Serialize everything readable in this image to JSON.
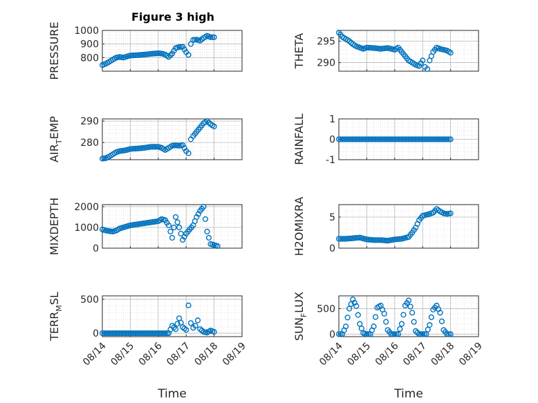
{
  "figure": {
    "title": "Figure 3 high",
    "x_label": "Time",
    "x_tick_labels": [
      "08/14",
      "08/15",
      "08/16",
      "08/17",
      "08/18",
      "08/19"
    ],
    "marker_color": "#0072BD",
    "grid": "on (major and minor, dotted)"
  },
  "panels": [
    {
      "ylabel_main": "PRESSURE",
      "ylabel_sub": "",
      "ylabel_tail": "",
      "y_tick_labels": [
        "800",
        "900",
        "1000"
      ]
    },
    {
      "ylabel_main": "THETA",
      "ylabel_sub": "",
      "ylabel_tail": "",
      "y_tick_labels": [
        "290",
        "295"
      ]
    },
    {
      "ylabel_main": "AIR",
      "ylabel_sub": "T",
      "ylabel_tail": "EMP",
      "y_tick_labels": [
        "280",
        "290"
      ]
    },
    {
      "ylabel_main": "RAINFALL",
      "ylabel_sub": "",
      "ylabel_tail": "",
      "y_tick_labels": [
        "-1",
        "0",
        "1"
      ]
    },
    {
      "ylabel_main": "MIXDEPTH",
      "ylabel_sub": "",
      "ylabel_tail": "",
      "y_tick_labels": [
        "0",
        "1000",
        "2000"
      ]
    },
    {
      "ylabel_main": "H2OMIXRA",
      "ylabel_sub": "",
      "ylabel_tail": "",
      "y_tick_labels": [
        "0",
        "5"
      ]
    },
    {
      "ylabel_main": "TERR",
      "ylabel_sub": "M",
      "ylabel_tail": "SL",
      "y_tick_labels": [
        "0",
        "500"
      ]
    },
    {
      "ylabel_main": "SUN",
      "ylabel_sub": "F",
      "ylabel_tail": "LUX",
      "y_tick_labels": [
        "0",
        "500"
      ]
    }
  ],
  "chart_data": [
    {
      "type": "scatter",
      "title": "Figure 3 high",
      "ylabel": "PRESSURE",
      "xlim": [
        "08/14",
        "08/19"
      ],
      "ylim": [
        700,
        1000
      ],
      "x": [
        "08/14 00:00",
        "08/14 03:00",
        "08/14 06:00",
        "08/14 09:00",
        "08/14 12:00",
        "08/14 15:00",
        "08/14 18:00",
        "08/14 21:00",
        "08/15 00:00",
        "08/15 06:00",
        "08/15 12:00",
        "08/15 18:00",
        "08/16 00:00",
        "08/16 03:00",
        "08/16 06:00",
        "08/16 09:00",
        "08/16 12:00",
        "08/16 15:00",
        "08/16 18:00",
        "08/16 21:00",
        "08/17 00:00",
        "08/17 02:00",
        "08/17 04:00",
        "08/17 06:00",
        "08/17 09:00",
        "08/17 12:00",
        "08/17 15:00",
        "08/17 18:00",
        "08/17 21:00",
        "08/18 00:00"
      ],
      "y": [
        745,
        755,
        770,
        785,
        800,
        805,
        800,
        808,
        815,
        818,
        822,
        828,
        832,
        830,
        822,
        805,
        830,
        870,
        878,
        880,
        840,
        820,
        900,
        930,
        932,
        925,
        945,
        960,
        950,
        950
      ]
    },
    {
      "type": "scatter",
      "ylabel": "THETA",
      "xlim": [
        "08/14",
        "08/19"
      ],
      "ylim": [
        288,
        297.5
      ],
      "x": [
        "08/14 00:00",
        "08/14 03:00",
        "08/14 06:00",
        "08/14 09:00",
        "08/14 12:00",
        "08/14 15:00",
        "08/14 18:00",
        "08/14 21:00",
        "08/15 00:00",
        "08/15 06:00",
        "08/15 12:00",
        "08/15 18:00",
        "08/16 00:00",
        "08/16 03:00",
        "08/16 06:00",
        "08/16 09:00",
        "08/16 12:00",
        "08/16 15:00",
        "08/16 18:00",
        "08/16 21:00",
        "08/17 00:00",
        "08/17 02:00",
        "08/17 04:00",
        "08/17 06:00",
        "08/17 09:00",
        "08/17 12:00",
        "08/17 15:00",
        "08/17 18:00",
        "08/17 21:00",
        "08/18 00:00"
      ],
      "y": [
        297,
        296,
        295.5,
        295,
        294.3,
        293.8,
        293.5,
        293.2,
        293.5,
        293.4,
        293.2,
        293.4,
        293,
        293.5,
        292.5,
        291.5,
        290.5,
        290,
        289.5,
        289.2,
        290.5,
        289,
        288.5,
        290.5,
        292.5,
        293.5,
        293.2,
        293,
        292.8,
        292.3
      ]
    },
    {
      "type": "scatter",
      "ylabel": "AIR_TEMP",
      "xlim": [
        "08/14",
        "08/19"
      ],
      "ylim": [
        272,
        291
      ],
      "x": [
        "08/14 00:00",
        "08/14 03:00",
        "08/14 06:00",
        "08/14 09:00",
        "08/14 12:00",
        "08/14 15:00",
        "08/14 18:00",
        "08/14 21:00",
        "08/15 00:00",
        "08/15 06:00",
        "08/15 12:00",
        "08/15 18:00",
        "08/16 00:00",
        "08/16 03:00",
        "08/16 06:00",
        "08/16 09:00",
        "08/16 12:00",
        "08/16 15:00",
        "08/16 18:00",
        "08/16 21:00",
        "08/17 00:00",
        "08/17 02:00",
        "08/17 04:00",
        "08/17 06:00",
        "08/17 09:00",
        "08/17 12:00",
        "08/17 15:00",
        "08/17 18:00",
        "08/17 21:00",
        "08/18 00:00"
      ],
      "y": [
        272.5,
        272.7,
        273.5,
        274.5,
        275.5,
        276,
        276.2,
        276.5,
        277,
        277.2,
        277.5,
        278,
        278,
        277.5,
        276.5,
        277.5,
        278.5,
        278.7,
        278.5,
        278.8,
        276,
        275,
        281.5,
        283,
        285,
        287,
        289,
        290,
        288.5,
        287.5
      ]
    },
    {
      "type": "scatter",
      "ylabel": "RAINFALL",
      "xlim": [
        "08/14",
        "08/19"
      ],
      "ylim": [
        -1,
        1
      ],
      "x": [
        "08/14 00:00",
        "08/14 12:00",
        "08/15 00:00",
        "08/15 12:00",
        "08/16 00:00",
        "08/16 12:00",
        "08/17 00:00",
        "08/17 12:00",
        "08/18 00:00"
      ],
      "y": [
        0,
        0,
        0,
        0,
        0,
        0,
        0,
        0,
        0
      ]
    },
    {
      "type": "scatter",
      "ylabel": "MIXDEPTH",
      "xlim": [
        "08/14",
        "08/19"
      ],
      "ylim": [
        0,
        2100
      ],
      "x": [
        "08/14 00:00",
        "08/14 03:00",
        "08/14 06:00",
        "08/14 09:00",
        "08/14 12:00",
        "08/14 15:00",
        "08/14 18:00",
        "08/14 21:00",
        "08/15 00:00",
        "08/15 06:00",
        "08/15 12:00",
        "08/15 18:00",
        "08/16 00:00",
        "08/16 03:00",
        "08/16 06:00",
        "08/16 09:00",
        "08/16 12:00",
        "08/16 15:00",
        "08/16 18:00",
        "08/16 21:00",
        "08/17 00:00",
        "08/17 03:00",
        "08/17 06:00",
        "08/17 09:00",
        "08/17 12:00",
        "08/17 15:00",
        "08/17 18:00",
        "08/17 21:00",
        "08/18 00:00",
        "08/18 03:00"
      ],
      "y": [
        900,
        850,
        820,
        800,
        850,
        950,
        1000,
        1050,
        1100,
        1150,
        1200,
        1250,
        1300,
        1400,
        1350,
        1100,
        500,
        1500,
        1000,
        400,
        700,
        900,
        1100,
        1500,
        1800,
        2000,
        800,
        200,
        150,
        100
      ]
    },
    {
      "type": "scatter",
      "ylabel": "H2OMIXRA",
      "xlim": [
        "08/14",
        "08/19"
      ],
      "ylim": [
        0,
        7
      ],
      "x": [
        "08/14 00:00",
        "08/14 06:00",
        "08/14 12:00",
        "08/14 18:00",
        "08/15 00:00",
        "08/15 06:00",
        "08/15 12:00",
        "08/15 18:00",
        "08/16 00:00",
        "08/16 06:00",
        "08/16 12:00",
        "08/16 15:00",
        "08/16 18:00",
        "08/16 21:00",
        "08/17 00:00",
        "08/17 06:00",
        "08/17 09:00",
        "08/17 12:00",
        "08/17 15:00",
        "08/17 18:00",
        "08/17 21:00",
        "08/18 00:00"
      ],
      "y": [
        1.5,
        1.5,
        1.6,
        1.7,
        1.4,
        1.3,
        1.3,
        1.2,
        1.4,
        1.5,
        1.8,
        2.5,
        3.3,
        4.5,
        5.2,
        5.5,
        5.7,
        6.3,
        5.9,
        5.6,
        5.5,
        5.6
      ]
    },
    {
      "type": "scatter",
      "ylabel": "TERR_MSL",
      "xlim": [
        "08/14",
        "08/19"
      ],
      "ylim": [
        -50,
        550
      ],
      "x": [
        "08/14 00:00",
        "08/14 06:00",
        "08/14 12:00",
        "08/14 18:00",
        "08/15 00:00",
        "08/15 06:00",
        "08/15 12:00",
        "08/15 18:00",
        "08/16 00:00",
        "08/16 03:00",
        "08/16 06:00",
        "08/16 09:00",
        "08/16 12:00",
        "08/16 15:00",
        "08/16 18:00",
        "08/16 21:00",
        "08/17 00:00",
        "08/17 02:00",
        "08/17 04:00",
        "08/17 06:00",
        "08/17 08:00",
        "08/17 10:00",
        "08/17 12:00",
        "08/17 15:00",
        "08/17 18:00",
        "08/17 21:00",
        "08/18 00:00"
      ],
      "y": [
        0,
        0,
        0,
        0,
        0,
        0,
        0,
        0,
        0,
        0,
        0,
        0,
        110,
        60,
        220,
        90,
        50,
        410,
        150,
        80,
        110,
        190,
        60,
        20,
        10,
        40,
        20
      ]
    },
    {
      "type": "scatter",
      "ylabel": "SUN_FLUX",
      "xlim": [
        "08/14",
        "08/19"
      ],
      "ylim": [
        -50,
        750
      ],
      "x": [
        "08/14 00:00",
        "08/14 03:00",
        "08/14 06:00",
        "08/14 09:00",
        "08/14 12:00",
        "08/14 15:00",
        "08/14 18:00",
        "08/14 21:00",
        "08/15 00:00",
        "08/15 03:00",
        "08/15 06:00",
        "08/15 09:00",
        "08/15 12:00",
        "08/15 15:00",
        "08/15 18:00",
        "08/15 21:00",
        "08/16 00:00",
        "08/16 03:00",
        "08/16 06:00",
        "08/16 09:00",
        "08/16 12:00",
        "08/16 15:00",
        "08/16 18:00",
        "08/16 21:00",
        "08/17 00:00",
        "08/17 03:00",
        "08/17 06:00",
        "08/17 09:00",
        "08/17 12:00",
        "08/17 15:00",
        "08/17 18:00",
        "08/17 21:00",
        "08/18 00:00"
      ],
      "y": [
        0,
        0,
        150,
        500,
        680,
        550,
        200,
        20,
        0,
        0,
        150,
        520,
        560,
        400,
        80,
        0,
        0,
        0,
        200,
        560,
        660,
        420,
        60,
        0,
        0,
        0,
        180,
        480,
        560,
        420,
        80,
        0,
        0
      ]
    }
  ]
}
